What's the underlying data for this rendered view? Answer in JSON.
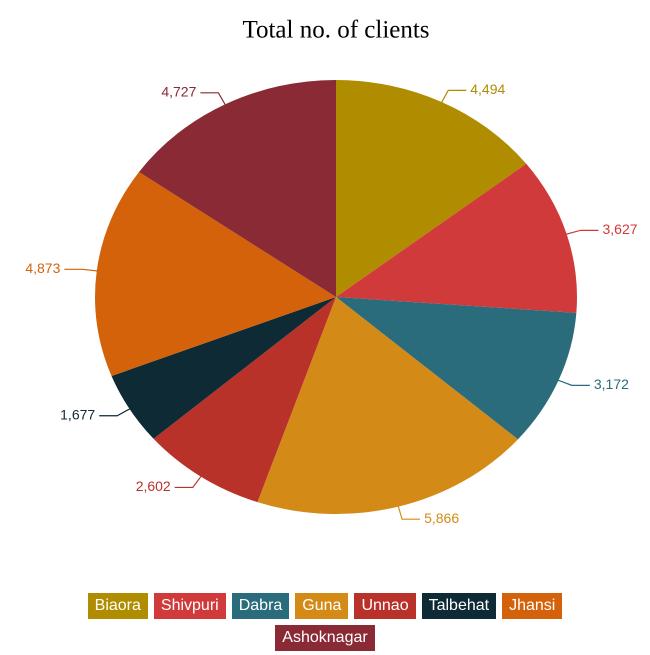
{
  "chart_data": {
    "type": "pie",
    "title": "Total no. of clients",
    "categories": [
      "Biaora",
      "Shivpuri",
      "Dabra",
      "Guna",
      "Unnao",
      "Talbehat",
      "Jhansi",
      "Ashoknagar"
    ],
    "values": [
      4494,
      3627,
      3172,
      5866,
      2602,
      1677,
      4873,
      4727
    ],
    "value_labels": [
      "4,494",
      "3,627",
      "3,172",
      "5,866",
      "2,602",
      "1,677",
      "4,873",
      "4,727"
    ],
    "colors": [
      "#b08d00",
      "#d03a3a",
      "#2a6b7c",
      "#d38a17",
      "#b8322a",
      "#0d2a35",
      "#d4620a",
      "#8a2a35"
    ],
    "legend": "bottom"
  }
}
